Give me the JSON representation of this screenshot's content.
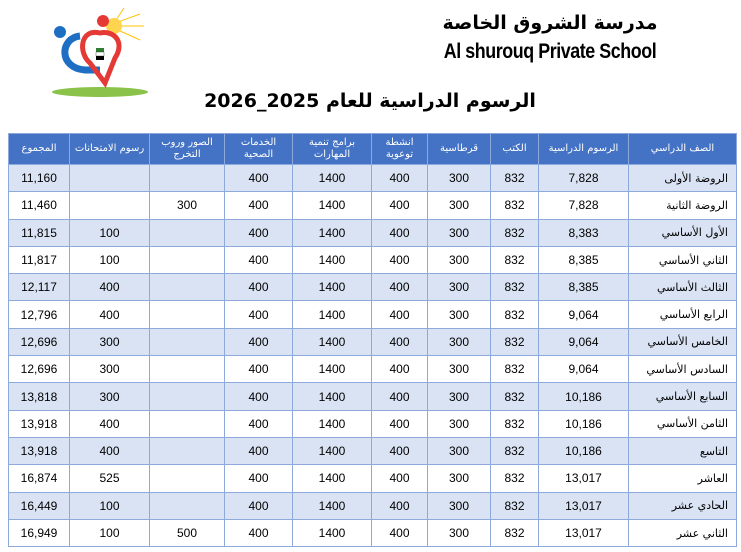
{
  "header": {
    "school_name_ar": "مدرسة الشروق الخاصة",
    "school_name_en": "Al shurouq Private School",
    "title": "الرسوم الدراسية للعام 2025_2026"
  },
  "colors": {
    "header_bg": "#4472c4",
    "row_alt": "#dae3f3",
    "logo_red": "#e53935",
    "logo_blue": "#1e6fc4",
    "logo_green": "#8bc34a",
    "logo_sun": "#ffc107"
  },
  "table": {
    "columns": [
      "الصف الدراسي",
      "الرسوم الدراسية",
      "الكتب",
      "قرطاسية",
      "انشطة توعوية",
      "برامج تنمية المهارات",
      "الخدمات الصحية",
      "الصور وروب التخرج",
      "رسوم الامتحانات",
      "المجموع"
    ],
    "rows": [
      [
        "الروضة الأولى",
        "7,828",
        "832",
        "300",
        "400",
        "1400",
        "400",
        "",
        "",
        "11,160"
      ],
      [
        "الروضة الثانية",
        "7,828",
        "832",
        "300",
        "400",
        "1400",
        "400",
        "300",
        "",
        "11,460"
      ],
      [
        "الأول الأساسي",
        "8,383",
        "832",
        "300",
        "400",
        "1400",
        "400",
        "",
        "100",
        "11,815"
      ],
      [
        "الثاني الأساسي",
        "8,385",
        "832",
        "300",
        "400",
        "1400",
        "400",
        "",
        "100",
        "11,817"
      ],
      [
        "الثالث الأساسي",
        "8,385",
        "832",
        "300",
        "400",
        "1400",
        "400",
        "",
        "400",
        "12,117"
      ],
      [
        "الرابع الأساسي",
        "9,064",
        "832",
        "300",
        "400",
        "1400",
        "400",
        "",
        "400",
        "12,796"
      ],
      [
        "الخامس الأساسي",
        "9,064",
        "832",
        "300",
        "400",
        "1400",
        "400",
        "",
        "300",
        "12,696"
      ],
      [
        "السادس الأساسي",
        "9,064",
        "832",
        "300",
        "400",
        "1400",
        "400",
        "",
        "300",
        "12,696"
      ],
      [
        "السابع الأساسي",
        "10,186",
        "832",
        "300",
        "400",
        "1400",
        "400",
        "",
        "300",
        "13,818"
      ],
      [
        "الثامن الأساسي",
        "10,186",
        "832",
        "300",
        "400",
        "1400",
        "400",
        "",
        "400",
        "13,918"
      ],
      [
        "التاسع",
        "10,186",
        "832",
        "300",
        "400",
        "1400",
        "400",
        "",
        "400",
        "13,918"
      ],
      [
        "العاشر",
        "13,017",
        "832",
        "300",
        "400",
        "1400",
        "400",
        "",
        "525",
        "16,874"
      ],
      [
        "الحادي عشر",
        "13,017",
        "832",
        "300",
        "400",
        "1400",
        "400",
        "",
        "100",
        "16,449"
      ],
      [
        "الثاني عشر",
        "13,017",
        "832",
        "300",
        "400",
        "1400",
        "400",
        "500",
        "100",
        "16,949"
      ]
    ]
  }
}
